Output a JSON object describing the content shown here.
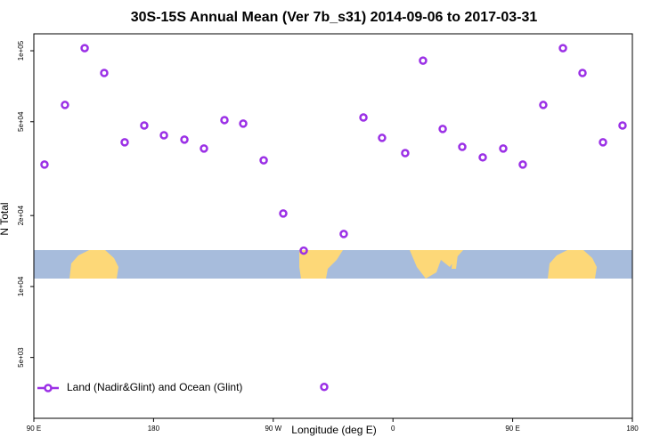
{
  "chart_data": {
    "type": "scatter",
    "title": "30S-15S Annual Mean (Ver 7b_s31)   2014-09-06 to 2017-03-31",
    "x_label": "Longitude (deg E)",
    "y_label": "N Total",
    "series": [
      {
        "name": "Land (Nadir&Glint) and Ocean (Glint)",
        "color": "#9b30e6",
        "x": [
          98,
          113.4,
          128.2,
          142.9,
          158.3,
          173,
          187.8,
          203.2,
          217.9,
          233.3,
          247.4,
          262.8,
          277.5,
          292.9,
          308.3,
          323,
          337.8,
          351.8,
          369.2,
          382.6,
          397.4,
          412.1,
          427.5,
          442.9,
          457.6,
          473,
          487.8,
          502.5,
          517.9,
          532.6
        ],
        "values": [
          32900,
          58900,
          102600,
          80500,
          40900,
          48200,
          43800,
          42000,
          38500,
          50800,
          49100,
          34300,
          20400,
          14200,
          3750,
          16700,
          52100,
          42700,
          36800,
          90800,
          46600,
          39100,
          35300,
          38500,
          32900,
          58900,
          102600,
          80500,
          40900,
          48200
        ]
      }
    ],
    "xlim": [
      90,
      540
    ],
    "xticks": [
      {
        "value": 90,
        "label": "90 E"
      },
      180,
      {
        "value": 270,
        "label": "90 W"
      },
      {
        "value": 360,
        "label": "0"
      },
      {
        "value": 450,
        "label": "90 E"
      },
      {
        "value": 540,
        "label": "180"
      }
    ],
    "ylim": [
      2760,
      118000
    ],
    "log_y": true,
    "yticks": [
      {
        "value": 5000,
        "label": "5e+03"
      },
      {
        "value": 10000,
        "label": "1e+04"
      },
      {
        "value": 20000,
        "label": "2e+04"
      },
      {
        "value": 50000,
        "label": "5e+04"
      },
      {
        "value": 100000,
        "label": "1e+05"
      }
    ],
    "legend": "bottom-left"
  }
}
